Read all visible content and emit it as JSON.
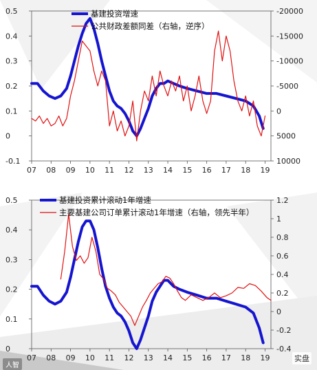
{
  "chart_data": [
    {
      "type": "line",
      "title": "",
      "x_ticks": [
        "07",
        "08",
        "09",
        "10",
        "11",
        "12",
        "13",
        "14",
        "15",
        "16",
        "17",
        "18",
        "19"
      ],
      "y_left_ticks": [
        "0.5",
        "0.4",
        "0.3",
        "0.2",
        "0.1",
        "0",
        "-0.1"
      ],
      "y_right_ticks": [
        "-20000",
        "-15000",
        "-10000",
        "-5000",
        "0",
        "5000",
        "10000"
      ],
      "y_left_lim": [
        -0.1,
        0.5
      ],
      "y_right_lim": [
        10000,
        -20000
      ],
      "y_right_reversed": true,
      "legend_placement": "top-center",
      "series": [
        {
          "name": "基建投资增速",
          "axis": "left",
          "color": "#1515d0",
          "style": "thick",
          "x": [
            2007.0,
            2007.3,
            2007.6,
            2007.9,
            2008.2,
            2008.5,
            2008.8,
            2009.0,
            2009.2,
            2009.4,
            2009.6,
            2009.8,
            2010.0,
            2010.2,
            2010.4,
            2010.6,
            2010.8,
            2011.0,
            2011.2,
            2011.4,
            2011.6,
            2011.8,
            2012.0,
            2012.2,
            2012.4,
            2012.6,
            2012.8,
            2013.0,
            2013.2,
            2013.4,
            2013.6,
            2013.8,
            2014.0,
            2014.3,
            2014.6,
            2015.0,
            2015.5,
            2016.0,
            2016.5,
            2017.0,
            2017.5,
            2018.0,
            2018.4,
            2018.7,
            2018.9
          ],
          "y": [
            0.21,
            0.21,
            0.18,
            0.16,
            0.15,
            0.16,
            0.19,
            0.24,
            0.3,
            0.36,
            0.41,
            0.45,
            0.47,
            0.43,
            0.37,
            0.3,
            0.24,
            0.18,
            0.14,
            0.12,
            0.11,
            0.09,
            0.06,
            0.02,
            0.0,
            0.03,
            0.07,
            0.11,
            0.16,
            0.19,
            0.21,
            0.21,
            0.22,
            0.21,
            0.2,
            0.19,
            0.18,
            0.17,
            0.17,
            0.16,
            0.15,
            0.14,
            0.12,
            0.08,
            0.03
          ]
        },
        {
          "name": "公共财政差额同差（右轴，逆序）",
          "axis": "right",
          "color": "#e01010",
          "style": "thin",
          "x": [
            2007.0,
            2007.2,
            2007.4,
            2007.6,
            2007.8,
            2008.0,
            2008.2,
            2008.4,
            2008.6,
            2008.8,
            2009.0,
            2009.2,
            2009.4,
            2009.6,
            2009.8,
            2010.0,
            2010.2,
            2010.4,
            2010.6,
            2010.8,
            2011.0,
            2011.2,
            2011.4,
            2011.6,
            2011.8,
            2012.0,
            2012.2,
            2012.4,
            2012.6,
            2012.8,
            2013.0,
            2013.2,
            2013.4,
            2013.6,
            2013.8,
            2014.0,
            2014.2,
            2014.4,
            2014.6,
            2014.8,
            2015.0,
            2015.2,
            2015.4,
            2015.6,
            2015.8,
            2016.0,
            2016.2,
            2016.4,
            2016.6,
            2016.8,
            2017.0,
            2017.2,
            2017.4,
            2017.6,
            2017.8,
            2018.0,
            2018.2,
            2018.4,
            2018.6,
            2018.8,
            2019.0
          ],
          "y": [
            1500,
            2000,
            1000,
            2500,
            1500,
            3000,
            2500,
            1000,
            3000,
            1500,
            -3000,
            -6000,
            -10000,
            -14000,
            -13000,
            -12000,
            -8000,
            -5000,
            -8000,
            -6000,
            3000,
            0,
            4000,
            2000,
            5000,
            3000,
            -2000,
            6000,
            0,
            -4000,
            -2000,
            -7000,
            -3000,
            -8000,
            -5000,
            -3000,
            -6000,
            -4000,
            -7000,
            -2000,
            -5000,
            0,
            -3000,
            -7000,
            -2000,
            500,
            -2000,
            -12000,
            -16000,
            -10000,
            -15000,
            -12000,
            -6000,
            -2000,
            0,
            -3000,
            1000,
            -2000,
            3000,
            5000,
            1000
          ]
        }
      ]
    },
    {
      "type": "line",
      "title": "",
      "x_ticks": [
        "07",
        "08",
        "09",
        "10",
        "11",
        "12",
        "13",
        "14",
        "15",
        "16",
        "17",
        "18",
        "19"
      ],
      "y_left_ticks": [
        "0.5",
        "0.4",
        "0.3",
        "0.2",
        "0.1",
        "0"
      ],
      "y_right_ticks": [
        "1.2",
        "1",
        "0.8",
        "0.6",
        "0.4",
        "0.2",
        "0",
        "-0.2",
        "-0.4"
      ],
      "y_left_lim": [
        0,
        0.5
      ],
      "y_right_lim": [
        -0.4,
        1.2
      ],
      "legend_placement": "top-center",
      "series": [
        {
          "name": "基建投资累计滚动1年增速",
          "axis": "left",
          "color": "#1515d0",
          "style": "thick",
          "x": [
            2007.0,
            2007.3,
            2007.6,
            2007.9,
            2008.2,
            2008.5,
            2008.8,
            2009.0,
            2009.2,
            2009.4,
            2009.6,
            2009.8,
            2010.0,
            2010.2,
            2010.4,
            2010.6,
            2010.8,
            2011.0,
            2011.2,
            2011.4,
            2011.6,
            2011.8,
            2012.0,
            2012.2,
            2012.4,
            2012.6,
            2012.8,
            2013.0,
            2013.2,
            2013.4,
            2013.6,
            2013.8,
            2014.0,
            2014.3,
            2014.6,
            2015.0,
            2015.5,
            2016.0,
            2016.5,
            2017.0,
            2017.5,
            2018.0,
            2018.4,
            2018.7,
            2018.9
          ],
          "y": [
            0.21,
            0.21,
            0.18,
            0.16,
            0.15,
            0.16,
            0.19,
            0.24,
            0.3,
            0.36,
            0.41,
            0.43,
            0.43,
            0.4,
            0.34,
            0.27,
            0.21,
            0.17,
            0.14,
            0.12,
            0.11,
            0.09,
            0.06,
            0.02,
            0.0,
            0.03,
            0.07,
            0.11,
            0.16,
            0.19,
            0.21,
            0.23,
            0.23,
            0.21,
            0.2,
            0.19,
            0.18,
            0.17,
            0.17,
            0.16,
            0.15,
            0.14,
            0.12,
            0.07,
            0.02
          ]
        },
        {
          "name": "主要基建公司订单累计滚动1年增速（右轴，领先半年）",
          "axis": "right",
          "color": "#e01010",
          "style": "thin",
          "x": [
            2008.5,
            2008.7,
            2008.9,
            2009.1,
            2009.3,
            2009.5,
            2009.7,
            2009.9,
            2010.1,
            2010.3,
            2010.5,
            2010.7,
            2010.9,
            2011.1,
            2011.3,
            2011.5,
            2011.7,
            2011.9,
            2012.1,
            2012.3,
            2012.5,
            2012.7,
            2012.9,
            2013.1,
            2013.3,
            2013.5,
            2013.7,
            2013.9,
            2014.1,
            2014.3,
            2014.5,
            2014.7,
            2014.9,
            2015.2,
            2015.5,
            2015.8,
            2016.1,
            2016.4,
            2016.7,
            2017.0,
            2017.3,
            2017.6,
            2017.9,
            2018.2,
            2018.5,
            2018.8,
            2019.1,
            2019.3
          ],
          "y": [
            0.35,
            0.65,
            1.05,
            0.7,
            0.55,
            0.6,
            0.52,
            0.58,
            0.8,
            0.65,
            0.4,
            0.35,
            0.25,
            0.22,
            0.18,
            0.1,
            0.05,
            0.0,
            -0.05,
            -0.15,
            -0.05,
            0.05,
            0.12,
            0.2,
            0.25,
            0.3,
            0.32,
            0.38,
            0.36,
            0.3,
            0.22,
            0.15,
            0.12,
            0.18,
            0.15,
            0.12,
            0.15,
            0.2,
            0.15,
            0.17,
            0.2,
            0.26,
            0.25,
            0.3,
            0.28,
            0.22,
            0.15,
            0.12
          ]
        }
      ]
    }
  ],
  "watermark_left": "人智",
  "watermark_right": "实盘"
}
